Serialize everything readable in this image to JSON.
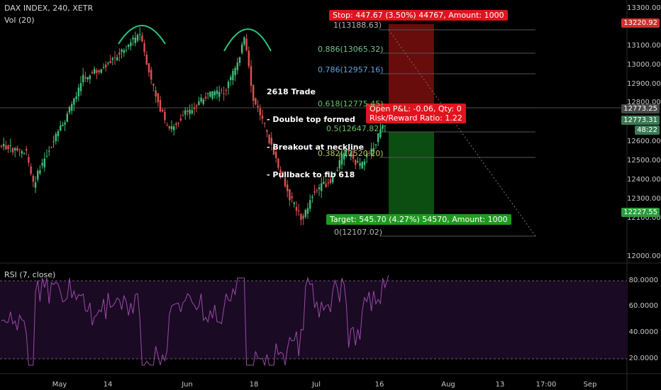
{
  "header": {
    "symbol_line": "DAX INDEX, 240, XETR",
    "volume_line": "Vol (20)",
    "rsi_line": "RSI (7, close)"
  },
  "price_axis": {
    "labels": [
      "13300.00",
      "13100.00",
      "13000.00",
      "12900.00",
      "12800.00",
      "12600.00",
      "12500.00",
      "12400.00",
      "12300.00",
      "12100.00",
      "12000.00"
    ],
    "tags": {
      "stop_price": "13220.92",
      "current_a": "12773.25",
      "current_b": "12773.31",
      "countdown": "48:22",
      "target_price": "12227.55"
    }
  },
  "rsi_axis": {
    "labels": [
      "80.0000",
      "60.0000",
      "40.0000",
      "20.0000"
    ]
  },
  "time_axis": {
    "labels": [
      "May",
      "14",
      "Jun",
      "18",
      "Jul",
      "16",
      "Aug",
      "13",
      "17:00",
      "Sep"
    ]
  },
  "position": {
    "stop_label": "Stop: 447.67 (3.50%) 44767, Amount: 1000",
    "target_label": "Target: 545.70 (4.27%) 54570, Amount: 1000",
    "pnl_line": "Open P&L: -0.06, Qty: 0",
    "rr_line": "Risk/Reward Ratio: 1.22"
  },
  "fib_levels": [
    {
      "text": "1(13188.63)",
      "color": "#b5b5b5"
    },
    {
      "text": "0.886(13065.32)",
      "color": "#72c48a"
    },
    {
      "text": "0.786(12957.16)",
      "color": "#5fa3de"
    },
    {
      "text": "0.618(12775.45)",
      "color": "#66c466"
    },
    {
      "text": "0.5(12647.82)",
      "color": "#66c466"
    },
    {
      "text": "0.382(12520.20)",
      "color": "#b9c45a"
    },
    {
      "text": "0(12107.02)",
      "color": "#b5b5b5"
    }
  ],
  "annotation": {
    "lines": [
      "2618 Trade",
      "- Double top formed",
      "- Breakout at neckline",
      "- Pullback to fib 618"
    ]
  },
  "colors": {
    "up": "#3fbf77",
    "down": "#d9534f",
    "stop_zone": "#7a0e0e",
    "target_zone": "#0e5a14",
    "rsi_line": "#9b4ba8",
    "rsi_band": "#1a0a24",
    "pattern_arc": "#2ec27e"
  },
  "icons": [
    "double-top-arc-icon",
    "diagonal-projection-line"
  ]
}
